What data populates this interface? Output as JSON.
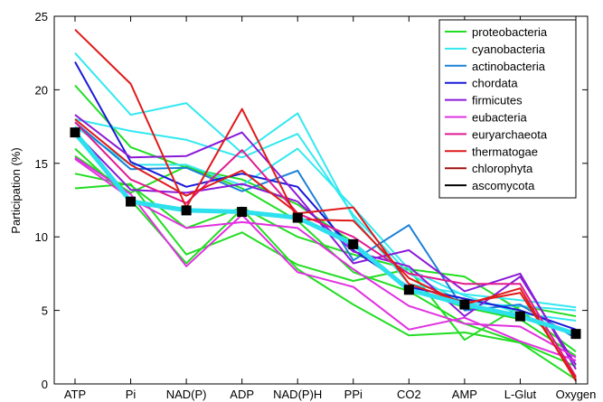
{
  "chart_data": {
    "type": "line",
    "title": "",
    "xlabel": "",
    "ylabel": "Participation (%)",
    "categories": [
      "ATP",
      "Pi",
      "NAD(P)",
      "ADP",
      "NAD(P)H",
      "PPi",
      "CO2",
      "AMP",
      "L-Glut",
      "Oxygen"
    ],
    "ylim": [
      0,
      25
    ],
    "yticks": [
      0,
      5,
      10,
      15,
      20,
      25
    ],
    "grid": false,
    "legend_placement": "top-right",
    "legend": [
      {
        "name": "proteobacteria",
        "color": "#22dd22"
      },
      {
        "name": "cyanobacteria",
        "color": "#33e8f0"
      },
      {
        "name": "actinobacteria",
        "color": "#1a80d8"
      },
      {
        "name": "chordata",
        "color": "#1a1ad8"
      },
      {
        "name": "firmicutes",
        "color": "#8a1ad8"
      },
      {
        "name": "eubacteria",
        "color": "#e030e0"
      },
      {
        "name": "euryarchaeota",
        "color": "#e01a90"
      },
      {
        "name": "thermatogae",
        "color": "#e01a1a"
      },
      {
        "name": "chlorophyta",
        "color": "#a01010"
      },
      {
        "name": "ascomycota",
        "color": "#000000"
      }
    ],
    "series": [
      {
        "color": "#22dd22",
        "values": [
          20.3,
          16.1,
          14.7,
          13.9,
          12.2,
          9.6,
          6.5,
          5.2,
          4.4,
          1.9
        ]
      },
      {
        "color": "#22dd22",
        "values": [
          14.3,
          13.5,
          10.6,
          12.0,
          10.0,
          8.8,
          7.8,
          7.3,
          5.0,
          2.2
        ]
      },
      {
        "color": "#22dd22",
        "values": [
          13.3,
          13.6,
          8.8,
          10.3,
          8.1,
          7.0,
          7.8,
          3.0,
          5.3,
          4.6
        ]
      },
      {
        "color": "#22dd22",
        "values": [
          16.0,
          12.5,
          8.2,
          11.9,
          7.8,
          5.4,
          3.3,
          3.5,
          2.8,
          1.2
        ]
      },
      {
        "color": "#22dd22",
        "values": [
          15.5,
          13.0,
          14.8,
          13.3,
          11.1,
          7.6,
          6.3,
          4.1,
          2.8,
          0.3
        ]
      },
      {
        "color": "#33e8f0",
        "values": [
          22.5,
          18.3,
          19.1,
          15.7,
          18.4,
          11.3,
          6.8,
          6.1,
          5.7,
          5.2
        ]
      },
      {
        "color": "#33e8f0",
        "values": [
          18.0,
          17.2,
          16.6,
          15.4,
          17.0,
          11.5,
          7.5,
          5.5,
          5.3,
          5.0
        ]
      },
      {
        "color": "#33e8f0",
        "values": [
          17.5,
          14.9,
          14.9,
          13.5,
          16.0,
          12.0,
          7.8,
          6.0,
          4.8,
          4.3
        ]
      },
      {
        "color": "#33e8f0",
        "values": [
          16.9,
          12.5,
          11.9,
          11.7,
          11.4,
          9.6,
          6.4,
          5.4,
          4.7,
          3.3
        ]
      },
      {
        "color": "#1a80d8",
        "values": [
          17.8,
          14.6,
          14.7,
          13.1,
          14.5,
          8.4,
          10.8,
          5.0,
          5.4,
          3.1
        ]
      },
      {
        "color": "#1a1ad8",
        "values": [
          21.9,
          15.1,
          13.4,
          14.3,
          13.4,
          9.1,
          6.6,
          5.8,
          5.0,
          3.7
        ]
      },
      {
        "color": "#8a1ad8",
        "values": [
          18.3,
          15.4,
          15.5,
          17.1,
          12.8,
          8.2,
          9.1,
          6.3,
          7.5,
          1.0
        ]
      },
      {
        "color": "#8a1ad8",
        "values": [
          17.1,
          13.2,
          13.0,
          13.6,
          12.4,
          9.0,
          8.0,
          4.6,
          7.3,
          1.3
        ]
      },
      {
        "color": "#e030e0",
        "values": [
          15.4,
          12.9,
          8.0,
          11.5,
          7.6,
          6.6,
          3.7,
          4.5,
          2.9,
          1.6
        ]
      },
      {
        "color": "#e030e0",
        "values": [
          15.3,
          12.6,
          10.6,
          11.0,
          10.6,
          7.8,
          5.3,
          4.1,
          3.9,
          1.8
        ]
      },
      {
        "color": "#e01a90",
        "values": [
          17.8,
          13.9,
          12.3,
          15.9,
          11.6,
          10.0,
          7.5,
          6.8,
          6.8,
          0.5
        ]
      },
      {
        "color": "#e01a1a",
        "values": [
          24.1,
          20.4,
          12.0,
          18.7,
          11.2,
          11.1,
          7.2,
          5.4,
          6.5,
          0.2
        ]
      },
      {
        "color": "#e01a1a",
        "values": [
          18.0,
          14.9,
          12.8,
          14.5,
          11.6,
          12.0,
          6.8,
          5.5,
          6.2,
          0.4
        ]
      }
    ],
    "mean_series": {
      "color": "#2ee0ee",
      "marker_color": "#000000",
      "values": [
        17.1,
        12.4,
        11.8,
        11.7,
        11.3,
        9.5,
        6.4,
        5.4,
        4.6,
        3.4
      ]
    }
  }
}
